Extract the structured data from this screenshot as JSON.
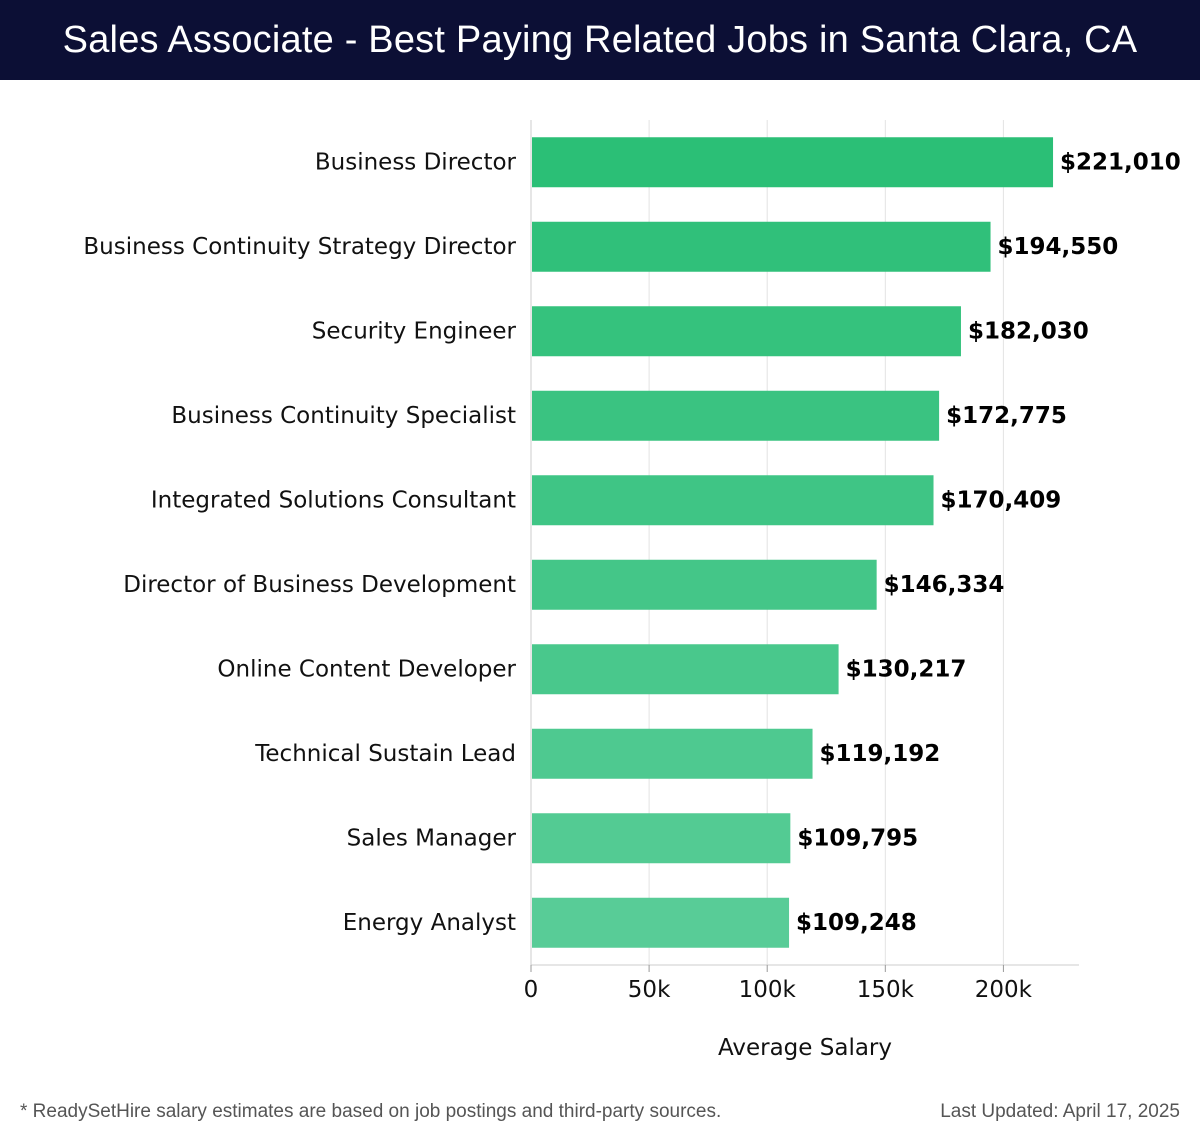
{
  "header": {
    "title": "Sales Associate - Best Paying Related Jobs in Santa Clara, CA"
  },
  "chart_data": {
    "type": "bar",
    "orientation": "horizontal",
    "categories": [
      "Business Director",
      "Business Continuity Strategy Director",
      "Security Engineer",
      "Business Continuity Specialist",
      "Integrated Solutions Consultant",
      "Director of Business Development",
      "Online Content Developer",
      "Technical Sustain Lead",
      "Sales Manager",
      "Energy Analyst"
    ],
    "values": [
      221010,
      194550,
      182030,
      172775,
      170409,
      146334,
      130217,
      119192,
      109795,
      109248
    ],
    "value_labels": [
      "$221,010",
      "$194,550",
      "$182,030",
      "$172,775",
      "$170,409",
      "$146,334",
      "$130,217",
      "$119,192",
      "$109,795",
      "$109,248"
    ],
    "xlabel": "Average Salary",
    "ylabel": "",
    "xlim": [
      0,
      232000
    ],
    "ticks": [
      0,
      50000,
      100000,
      150000,
      200000
    ],
    "tick_labels": [
      "0",
      "50k",
      "100k",
      "150k",
      "200k"
    ],
    "grid": true,
    "bar_color_top": "#2bbf76",
    "bar_color_bottom": "#58cc97"
  },
  "footer": {
    "note": "* ReadySetHire salary estimates are based on job postings and third-party sources.",
    "updated": "Last Updated: April 17, 2025"
  }
}
